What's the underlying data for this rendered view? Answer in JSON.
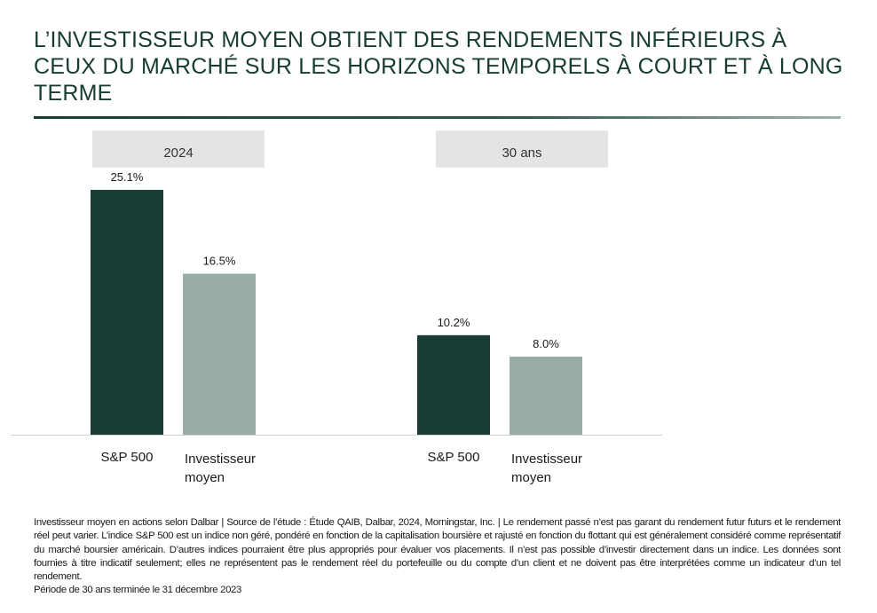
{
  "title": "L’INVESTISSEUR MOYEN OBTIENT DES RENDEMENTS INFÉRIEURS À CEUX DU MARCHÉ SUR LES HORIZONS TEMPORELS À COURT ET À LONG TERME",
  "colors": {
    "title": "#163c33",
    "sp500": "#173d35",
    "investor": "#9aaca8",
    "panel_header_bg": "#e4e4e4",
    "baseline": "#cfcfcf"
  },
  "chart_data": {
    "type": "bar",
    "title": "L’INVESTISSEUR MOYEN OBTIENT DES RENDEMENTS INFÉRIEURS À CEUX DU MARCHÉ SUR LES HORIZONS TEMPORELS À COURT ET À LONG TERME",
    "xlabel": "",
    "ylabel": "",
    "ylim": [
      0,
      25.1
    ],
    "grid": false,
    "groups": [
      "2024",
      "30 ans"
    ],
    "categories": [
      [
        "S&P 500"
      ],
      [
        "Investisseur",
        "moyen"
      ]
    ],
    "series": [
      {
        "group": "2024",
        "values": [
          25.1,
          16.5
        ],
        "labels": [
          "25.1%",
          "16.5%"
        ]
      },
      {
        "group": "30 ans",
        "values": [
          10.2,
          8.0
        ],
        "labels": [
          "10.2%",
          "8.0%"
        ]
      }
    ]
  },
  "footnote": {
    "main": "Investisseur moyen en actions selon Dalbar | Source de l’étude : Étude QAIB, Dalbar, 2024, Morningstar, Inc. | Le rendement passé n’est pas garant du rendement futur futurs et le rendement réel peut varier. L’indice S&P 500 est un indice non géré, pondéré en fonction de la capitalisation boursière et rajusté en fonction du flottant qui est généralement considéré comme représentatif du marché boursier américain. D’autres indices pourraient être plus appropriés pour évaluer vos placements. Il n’est pas possible d’investir directement dans un indice. Les données sont fournies à titre indicatif seulement; elles ne représentent pas le rendement réel du portefeuille ou du compte d’un client et ne doivent pas être interprétées comme un indicateur d’un tel rendement.",
    "period": "Période de 30 ans terminée le 31 décembre 2023"
  }
}
